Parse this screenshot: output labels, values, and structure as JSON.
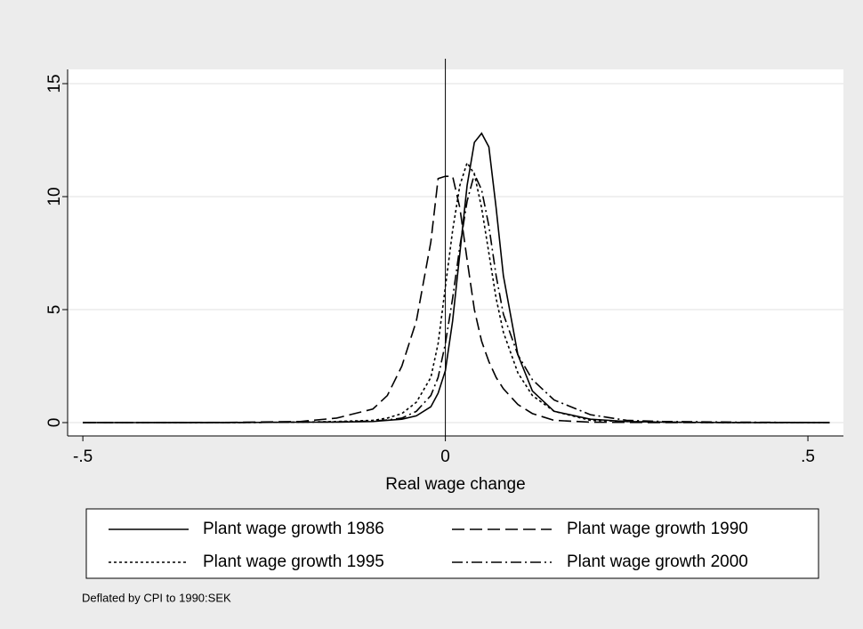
{
  "chart_data": {
    "type": "line",
    "xlabel": "Real wage change",
    "note": "Deflated by CPI to 1990:SEK",
    "x": [
      -0.5,
      -0.4,
      -0.3,
      -0.2,
      -0.15,
      -0.1,
      -0.08,
      -0.06,
      -0.04,
      -0.02,
      -0.01,
      0,
      0.01,
      0.02,
      0.03,
      0.04,
      0.05,
      0.06,
      0.07,
      0.08,
      0.1,
      0.12,
      0.15,
      0.2,
      0.25,
      0.3,
      0.4,
      0.53
    ],
    "series": [
      {
        "name": "Plant wage growth 1986",
        "color": "#000000",
        "dash": "solid",
        "values": [
          0,
          0,
          0,
          0.02,
          0.02,
          0.05,
          0.1,
          0.15,
          0.3,
          0.7,
          1.3,
          2.3,
          4.5,
          7.5,
          10.5,
          12.4,
          12.8,
          12.2,
          9.5,
          6.5,
          3.0,
          1.4,
          0.5,
          0.15,
          0.05,
          0.02,
          0,
          0
        ]
      },
      {
        "name": "Plant wage growth 1990",
        "color": "#000000",
        "dash": "dash",
        "values": [
          0,
          0,
          0.01,
          0.05,
          0.2,
          0.6,
          1.2,
          2.5,
          4.5,
          8,
          10.8,
          10.9,
          10.9,
          9.5,
          7.2,
          5,
          3.6,
          2.7,
          2.0,
          1.5,
          0.8,
          0.4,
          0.1,
          0.02,
          0.01,
          0,
          0,
          0
        ]
      },
      {
        "name": "Plant wage growth 1995",
        "color": "#000000",
        "dash": "dot",
        "values": [
          0,
          0,
          0,
          0.02,
          0.05,
          0.1,
          0.2,
          0.4,
          0.9,
          2,
          3.5,
          6,
          8.5,
          10.5,
          11.5,
          11,
          9.5,
          7.5,
          5.5,
          4,
          2.2,
          1.2,
          0.5,
          0.1,
          0.05,
          0.02,
          0,
          0
        ]
      },
      {
        "name": "Plant wage growth 2000",
        "color": "#000000",
        "dash": "dash_dot",
        "values": [
          0,
          0,
          0,
          0.02,
          0.03,
          0.07,
          0.12,
          0.2,
          0.5,
          1.2,
          2,
          3.5,
          5.5,
          7.8,
          9.8,
          11,
          10.3,
          8.7,
          6.5,
          4.8,
          3,
          1.9,
          1.0,
          0.35,
          0.1,
          0.05,
          0.02,
          0
        ]
      }
    ],
    "xlim": [
      -0.521,
      0.549
    ],
    "ylim": [
      -0.59,
      15.63
    ],
    "xticks": [
      {
        "value": -0.5,
        "label": "-.5"
      },
      0,
      {
        "value": 0.5,
        "label": ".5"
      }
    ],
    "yticks": [
      0,
      5,
      10,
      15
    ],
    "xline": 0,
    "grid": true,
    "legend": "bottom"
  }
}
